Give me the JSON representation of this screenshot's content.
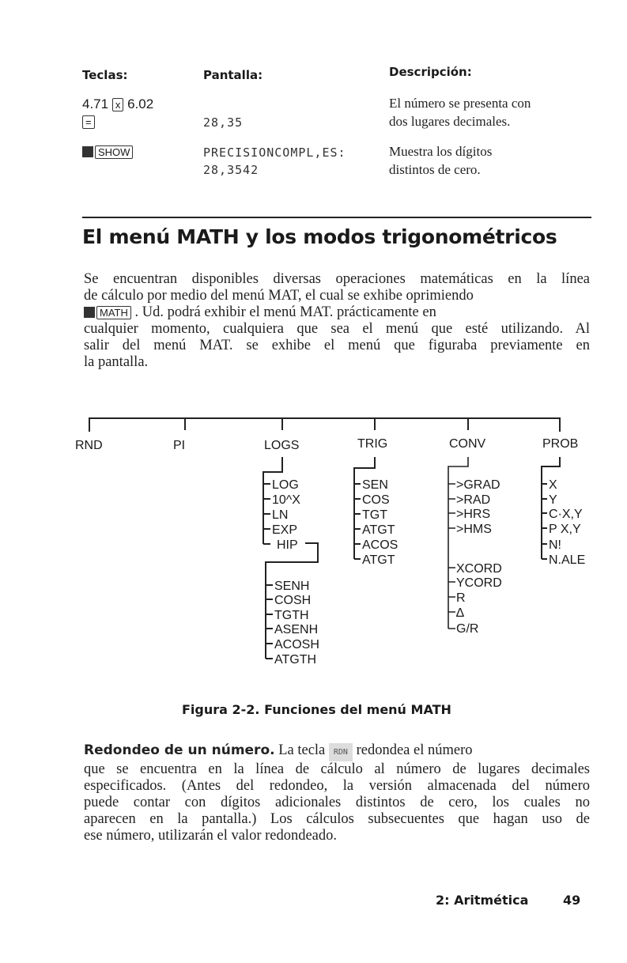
{
  "table": {
    "headers": {
      "keys": "Teclas:",
      "display": "Pantalla:",
      "description": "Descripción:"
    },
    "rows": [
      {
        "keys_prefix": "4.71",
        "key1": "x",
        "keys_suffix": "6.02",
        "key2": "=",
        "display": "28,35",
        "description": [
          "El número se presenta con",
          "dos lugares decimales."
        ]
      },
      {
        "shift_icon": "shift-key-icon",
        "key1": "SHOW",
        "display": [
          "PRECISIONCOMPL,ES:",
          "28,3542"
        ],
        "description": [
          "Muestra los dígitos",
          "distintos de cero."
        ]
      }
    ]
  },
  "section": {
    "title": "El menú MATH y los modos trigonométricos",
    "paragraph": {
      "lines": [
        "Se encuentran disponibles diversas operaciones matemáticas en la línea",
        "de cálculo por medio del menú MAT, el cual se exhibe oprimiendo",
        ". Ud. podrá exhibir el menú MAT. prácticamente en",
        "cualquier momento, cualquiera que sea el menú que esté utilizando. Al",
        "salir del menú MAT. se exhibe el menú que figuraba previamente en",
        "la pantalla."
      ],
      "key": "MATH"
    }
  },
  "figure": {
    "top": [
      "RND",
      "PI",
      "LOGS",
      "TRIG",
      "CONV",
      "PROB"
    ],
    "logs": [
      "LOG",
      "10^X",
      "LN",
      "EXP",
      "HIP"
    ],
    "hip": [
      "SENH",
      "COSH",
      "TGTH",
      "ASENH",
      "ACOSH",
      "ATGTH"
    ],
    "trig": [
      "SEN",
      "COS",
      "TGT",
      "ATGT",
      "ACOS",
      "ATGT"
    ],
    "conv": [
      ">GRAD",
      ">RAD",
      ">HRS",
      ">HMS",
      "XCORD",
      "YCORD",
      "R",
      "∆",
      "G/R"
    ],
    "prob": [
      "X",
      "Y",
      "C·X,Y",
      "P X,Y",
      "N!",
      "N.ALE"
    ],
    "caption": "Figura 2-2. Funciones del menú MATH"
  },
  "rounding": {
    "heading": "Redondeo de un número.",
    "lead": "La tecla",
    "key": "RDN",
    "after": "redondea el número",
    "lines": [
      "que se encuentra en la línea de cálculo al número de lugares decimales",
      "especificados. (Antes del redondeo, la versión almacenada del número",
      "puede contar con dígitos adicionales distintos de cero, los cuales no",
      "aparecen en la pantalla.) Los cálculos subsecuentes que hagan uso de",
      "ese número, utilizarán el valor redondeado."
    ]
  },
  "footer": {
    "chapter": "2: Aritmética",
    "page": "49"
  }
}
